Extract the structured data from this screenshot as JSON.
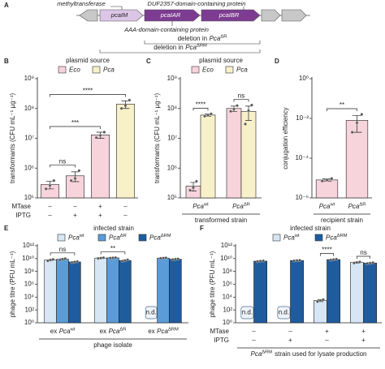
{
  "panel_a": {
    "label": "A",
    "top_annotations": [
      "methyltransferase",
      "DUF2357-domain-containing protein"
    ],
    "genes": [
      "pcaIM",
      "pcaIAR",
      "pcaIBR"
    ],
    "bottom_annotation": "AAA-domain-containing protein",
    "deletions": [
      {
        "prefix": "deletion in",
        "text": "Pca",
        "sup": "ΔR"
      },
      {
        "prefix": "deletion in",
        "text": "Pca",
        "sup": "ΔRM"
      }
    ]
  },
  "chart_data": [
    {
      "type": "bar",
      "panel": "B",
      "legend_title": "plasmid source",
      "ylabel": "transformants (CFU mL⁻¹ µg⁻¹)",
      "log_y": true,
      "ylim": [
        100000.0,
        1000000000.0
      ],
      "yticks": [
        {
          "value": 100000.0,
          "label": "10⁵"
        },
        {
          "value": 1000000.0,
          "label": "10⁶"
        },
        {
          "value": 10000000.0,
          "label": "10⁷"
        },
        {
          "value": 100000000.0,
          "label": "10⁸"
        },
        {
          "value": 1000000000.0,
          "label": "10⁹"
        }
      ],
      "conditions": [
        {
          "name": "MTase",
          "values": [
            "–",
            "–",
            "+",
            "–"
          ]
        },
        {
          "name": "IPTG",
          "values": [
            "–",
            "+",
            "+",
            "–"
          ]
        }
      ],
      "series": [
        {
          "name": {
            "text": "Eco"
          },
          "color": "#f7d3dc",
          "values": [
            280000.0,
            550000.0,
            13000000.0,
            null
          ],
          "errors": [
            80000.0,
            200000.0,
            3000000.0,
            null
          ],
          "points": [
            [
              200000.0,
              260000.0,
              380000.0
            ],
            [
              380000.0,
              450000.0,
              820000.0
            ],
            [
              10500000.0,
              12500000.0,
              16000000.0
            ],
            null
          ]
        },
        {
          "name": {
            "text": "Pca"
          },
          "color": "#f8f0c8",
          "values": [
            null,
            null,
            null,
            140000000.0
          ],
          "errors": [
            null,
            null,
            null,
            40000000.0
          ],
          "points": [
            null,
            null,
            null,
            [
              100000000.0,
              125000000.0,
              190000000.0
            ]
          ]
        }
      ],
      "significance": [
        {
          "label": "ns",
          "between": [
            [
              0,
              0
            ],
            [
              1,
              0
            ]
          ]
        },
        {
          "label": "***",
          "between": [
            [
              0,
              0
            ],
            [
              2,
              0
            ]
          ]
        },
        {
          "label": "****",
          "between": [
            [
              0,
              0
            ],
            [
              3,
              1
            ]
          ]
        }
      ]
    },
    {
      "type": "bar",
      "panel": "C",
      "legend_title": "plasmid source",
      "ylabel": "transformants (CFU mL⁻¹ µg⁻¹)",
      "log_y": true,
      "ylim": [
        100000.0,
        1000000000.0
      ],
      "yticks": [
        {
          "value": 100000.0,
          "label": "10⁵"
        },
        {
          "value": 1000000.0,
          "label": "10⁶"
        },
        {
          "value": 10000000.0,
          "label": "10⁷"
        },
        {
          "value": 100000000.0,
          "label": "10⁸"
        },
        {
          "value": 1000000000.0,
          "label": "10⁹"
        }
      ],
      "categories": [
        {
          "text": "Pca",
          "sup": "wt"
        },
        {
          "text": "Pca",
          "sup": "ΔR"
        }
      ],
      "xlabel": "transformed strain",
      "series": [
        {
          "name": {
            "text": "Eco"
          },
          "color": "#f7d3dc",
          "values": [
            250000.0,
            100000000.0
          ],
          "errors": [
            80000.0,
            20000000.0
          ],
          "points": [
            [
              180000.0,
              220000.0,
              360000.0
            ],
            [
              80000000.0,
              95000000.0,
              125000000.0
            ]
          ]
        },
        {
          "name": {
            "text": "Pca"
          },
          "color": "#f8f0c8",
          "values": [
            60000000.0,
            80000000.0
          ],
          "errors": [
            5000000.0,
            40000000.0
          ],
          "points": [
            [
              55000000.0,
              60000000.0,
              66000000.0
            ],
            [
              30000000.0,
              85000000.0,
              130000000.0
            ]
          ]
        }
      ],
      "significance": [
        {
          "label": "****",
          "between": [
            [
              0,
              0
            ],
            [
              0,
              1
            ]
          ]
        },
        {
          "label": "ns",
          "between": [
            [
              1,
              0
            ],
            [
              1,
              1
            ]
          ]
        }
      ]
    },
    {
      "type": "bar",
      "panel": "D",
      "ylabel": "conjugation efficiency",
      "log_y": true,
      "ylim": [
        1e-06,
        1
      ],
      "yticks": [
        {
          "value": 1e-06,
          "label": "10⁻⁶"
        },
        {
          "value": 0.0001,
          "label": "10⁻⁴"
        },
        {
          "value": 0.01,
          "label": "10⁻²"
        },
        {
          "value": 1,
          "label": "10⁰"
        }
      ],
      "categories": [
        {
          "text": "Pca",
          "sup": "wt"
        },
        {
          "text": "Pca",
          "sup": "ΔR"
        }
      ],
      "xlabel": "recipient strain",
      "series": [
        {
          "color": "#f7d3dc",
          "values": [
            8e-06,
            0.008
          ],
          "errors": [
            1e-06,
            0.006
          ],
          "points": [
            [
              7e-06,
              8e-06,
              9.5e-06
            ],
            [
              0.002,
              0.006,
              0.016
            ]
          ]
        }
      ],
      "significance": [
        {
          "label": "**",
          "between": [
            [
              0,
              0
            ],
            [
              1,
              0
            ]
          ]
        }
      ]
    },
    {
      "type": "bar",
      "panel": "E",
      "legend_title": "infected strain",
      "ylabel": "phage titre (PFU mL⁻¹)",
      "log_y": true,
      "ylim": [
        1,
        1000000000000.0
      ],
      "yticks": [
        {
          "value": 1,
          "label": "10⁰"
        },
        {
          "value": 100.0,
          "label": "10²"
        },
        {
          "value": 10000.0,
          "label": "10⁴"
        },
        {
          "value": 1000000.0,
          "label": "10⁶"
        },
        {
          "value": 100000000.0,
          "label": "10⁸"
        },
        {
          "value": 10000000000.0,
          "label": "10¹⁰"
        },
        {
          "value": 1000000000000.0,
          "label": "10¹²"
        }
      ],
      "categories": [
        {
          "prefix": "ex",
          "text": "Pca",
          "sup": "wt"
        },
        {
          "prefix": "ex",
          "text": "Pca",
          "sup": "ΔR"
        },
        {
          "prefix": "ex",
          "text": "Pca",
          "sup": "ΔRM"
        }
      ],
      "xlabel": "phage isolate",
      "series": [
        {
          "name": {
            "text": "Pca",
            "sup": "wt"
          },
          "color": "#d7e6f5",
          "values": [
            6000000000.0,
            12000000000.0,
            null
          ],
          "errors": [
            1000000000.0,
            1000000000.0,
            null
          ],
          "value_labels": [
            null,
            null,
            "n.d."
          ],
          "points": [
            [
              4500000000.0,
              6000000000.0,
              7500000000.0
            ],
            [
              10500000000.0,
              12000000000.0,
              13500000000.0
            ],
            null
          ]
        },
        {
          "name": {
            "text": "Pca",
            "sup": "ΔR"
          },
          "color": "#5a9bd8",
          "values": [
            8000000000.0,
            13000000000.0,
            12000000000.0
          ],
          "errors": [
            1500000000.0,
            1000000000.0,
            1000000000.0
          ],
          "points": [
            [
              6000000000.0,
              8000000000.0,
              10000000000.0
            ],
            [
              12000000000.0,
              13000000000.0,
              14000000000.0
            ],
            [
              11000000000.0,
              12000000000.0,
              13000000000.0
            ]
          ]
        },
        {
          "name": {
            "text": "Pca",
            "sup": "ΔRM"
          },
          "color": "#1f5c9e",
          "values": [
            3000000000.0,
            5000000000.0,
            8000000000.0
          ],
          "errors": [
            500000000.0,
            1000000000.0,
            1000000000.0
          ],
          "points": [
            [
              2500000000.0,
              3000000000.0,
              3500000000.0
            ],
            [
              4000000000.0,
              5000000000.0,
              6500000000.0
            ],
            [
              7000000000.0,
              8000000000.0,
              9000000000.0
            ]
          ]
        }
      ],
      "significance": [
        {
          "label": "ns",
          "between": [
            [
              0,
              0
            ],
            [
              0,
              2
            ]
          ]
        },
        {
          "label": "**",
          "between": [
            [
              1,
              0
            ],
            [
              1,
              2
            ]
          ]
        }
      ]
    },
    {
      "type": "bar",
      "panel": "F",
      "legend_title": "infected strain",
      "ylabel": "phage titre (PFU mL⁻¹)",
      "log_y": true,
      "ylim": [
        1,
        1000000000000.0
      ],
      "yticks": [
        {
          "value": 1,
          "label": "10⁰"
        },
        {
          "value": 100.0,
          "label": "10²"
        },
        {
          "value": 10000.0,
          "label": "10⁴"
        },
        {
          "value": 1000000.0,
          "label": "10⁶"
        },
        {
          "value": 100000000.0,
          "label": "10⁸"
        },
        {
          "value": 10000000000.0,
          "label": "10¹⁰"
        },
        {
          "value": 1000000000000.0,
          "label": "10¹²"
        }
      ],
      "conditions": [
        {
          "name": "MTase",
          "values": [
            "–",
            "–",
            "+",
            "+"
          ]
        },
        {
          "name": "IPTG",
          "values": [
            "–",
            "+",
            "–",
            "+"
          ]
        }
      ],
      "xlabel": {
        "text": "Pca",
        "sup": "ΔRM",
        "suffix": "strain used for lysate production"
      },
      "series": [
        {
          "name": {
            "text": "Pca",
            "sup": "wt"
          },
          "color": "#d7e6f5",
          "values": [
            null,
            null,
            3000.0,
            2500000000.0
          ],
          "errors": [
            null,
            null,
            1000.0,
            500000000.0
          ],
          "value_labels": [
            "n.d.",
            "n.d.",
            null,
            null
          ],
          "points": [
            null,
            null,
            [
              2000.0,
              3000.0,
              4000.0
            ],
            [
              2000000000.0,
              2500000000.0,
              3000000000.0
            ]
          ]
        },
        {
          "name": {
            "text": "Pca",
            "sup": "ΔRM"
          },
          "color": "#1f5c9e",
          "values": [
            4000000000.0,
            5000000000.0,
            7000000000.0,
            2000000000.0
          ],
          "errors": [
            500000000.0,
            500000000.0,
            1000000000.0,
            300000000.0
          ],
          "points": [
            [
              3500000000.0,
              4000000000.0,
              4500000000.0
            ],
            [
              4500000000.0,
              5000000000.0,
              5500000000.0
            ],
            [
              6000000000.0,
              7000000000.0,
              8000000000.0
            ],
            [
              1700000000.0,
              2000000000.0,
              2300000000.0
            ]
          ]
        }
      ],
      "significance": [
        {
          "label": "****",
          "between": [
            [
              2,
              0
            ],
            [
              2,
              1
            ]
          ]
        },
        {
          "label": "ns",
          "between": [
            [
              3,
              0
            ],
            [
              3,
              1
            ]
          ]
        }
      ]
    }
  ]
}
